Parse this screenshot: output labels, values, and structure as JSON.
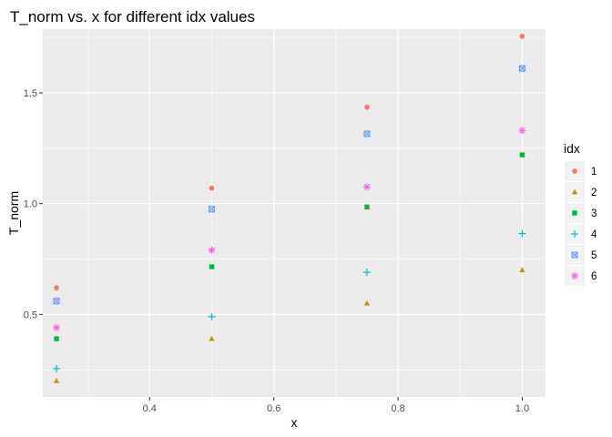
{
  "chart_data": {
    "type": "scatter",
    "title": "T_norm vs. x for different idx values",
    "xlabel": "x",
    "ylabel": "T_norm",
    "xlim": [
      0.228,
      1.0375
    ],
    "ylim": [
      0.1275,
      1.7875
    ],
    "x_ticks": [
      0.4,
      0.6,
      0.8,
      1.0
    ],
    "x_tick_labels": [
      "0.4",
      "0.6",
      "0.8",
      "1.0"
    ],
    "y_ticks": [
      0.5,
      1.0,
      1.5
    ],
    "y_tick_labels": [
      "0.5",
      "1.0",
      "1.5"
    ],
    "grid": true,
    "legend": {
      "title": "idx",
      "position": "right"
    },
    "x": [
      0.25,
      0.5,
      0.75,
      1.0
    ],
    "series": [
      {
        "name": "1",
        "color": "#F8766D",
        "shape": "circle",
        "values": [
          0.62,
          1.07,
          1.435,
          1.755
        ]
      },
      {
        "name": "2",
        "color": "#B79F00",
        "shape": "triangle",
        "values": [
          0.2,
          0.39,
          0.55,
          0.7
        ]
      },
      {
        "name": "3",
        "color": "#00BA38",
        "shape": "square",
        "values": [
          0.39,
          0.715,
          0.985,
          1.22
        ]
      },
      {
        "name": "4",
        "color": "#00BFC4",
        "shape": "plus",
        "values": [
          0.255,
          0.49,
          0.69,
          0.865
        ]
      },
      {
        "name": "5",
        "color": "#619CFF",
        "shape": "boxx",
        "values": [
          0.56,
          0.975,
          1.315,
          1.61
        ]
      },
      {
        "name": "6",
        "color": "#F564E3",
        "shape": "star",
        "values": [
          0.44,
          0.79,
          1.075,
          1.33
        ]
      }
    ]
  }
}
